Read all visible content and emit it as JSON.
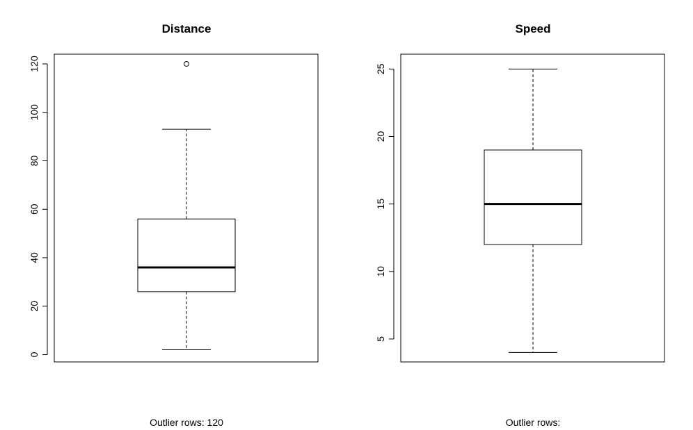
{
  "chart_data": [
    {
      "type": "box",
      "title": "Distance",
      "ylim": [
        -3,
        124
      ],
      "yticks": [
        0,
        20,
        40,
        60,
        80,
        100,
        120
      ],
      "box": {
        "whisker_low": 2,
        "q1": 26,
        "median": 36,
        "q3": 56,
        "whisker_high": 93
      },
      "outliers": [
        120
      ],
      "caption": "Outlier rows:  120"
    },
    {
      "type": "box",
      "title": "Speed",
      "ylim": [
        3.3,
        26.1
      ],
      "yticks": [
        5,
        10,
        15,
        20,
        25
      ],
      "box": {
        "whisker_low": 4,
        "q1": 12,
        "median": 15,
        "q3": 19,
        "whisker_high": 25
      },
      "outliers": [],
      "caption": "Outlier rows:"
    }
  ]
}
